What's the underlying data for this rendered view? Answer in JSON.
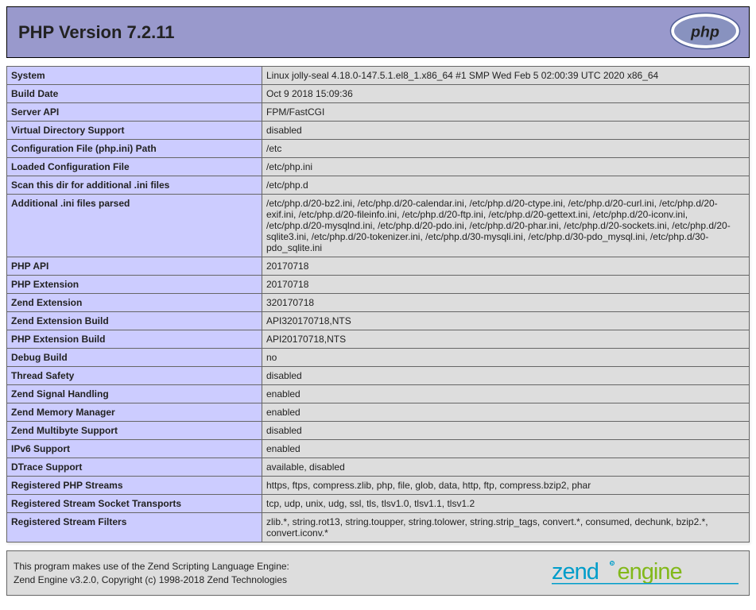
{
  "header": {
    "title": "PHP Version 7.2.11"
  },
  "info_rows": [
    {
      "key": "System",
      "value": "Linux jolly-seal 4.18.0-147.5.1.el8_1.x86_64 #1 SMP Wed Feb 5 02:00:39 UTC 2020 x86_64"
    },
    {
      "key": "Build Date",
      "value": "Oct 9 2018 15:09:36"
    },
    {
      "key": "Server API",
      "value": "FPM/FastCGI"
    },
    {
      "key": "Virtual Directory Support",
      "value": "disabled"
    },
    {
      "key": "Configuration File (php.ini) Path",
      "value": "/etc"
    },
    {
      "key": "Loaded Configuration File",
      "value": "/etc/php.ini"
    },
    {
      "key": "Scan this dir for additional .ini files",
      "value": "/etc/php.d"
    },
    {
      "key": "Additional .ini files parsed",
      "value": "/etc/php.d/20-bz2.ini, /etc/php.d/20-calendar.ini, /etc/php.d/20-ctype.ini, /etc/php.d/20-curl.ini, /etc/php.d/20-exif.ini, /etc/php.d/20-fileinfo.ini, /etc/php.d/20-ftp.ini, /etc/php.d/20-gettext.ini, /etc/php.d/20-iconv.ini, /etc/php.d/20-mysqlnd.ini, /etc/php.d/20-pdo.ini, /etc/php.d/20-phar.ini, /etc/php.d/20-sockets.ini, /etc/php.d/20-sqlite3.ini, /etc/php.d/20-tokenizer.ini, /etc/php.d/30-mysqli.ini, /etc/php.d/30-pdo_mysql.ini, /etc/php.d/30-pdo_sqlite.ini"
    },
    {
      "key": "PHP API",
      "value": "20170718"
    },
    {
      "key": "PHP Extension",
      "value": "20170718"
    },
    {
      "key": "Zend Extension",
      "value": "320170718"
    },
    {
      "key": "Zend Extension Build",
      "value": "API320170718,NTS"
    },
    {
      "key": "PHP Extension Build",
      "value": "API20170718,NTS"
    },
    {
      "key": "Debug Build",
      "value": "no"
    },
    {
      "key": "Thread Safety",
      "value": "disabled"
    },
    {
      "key": "Zend Signal Handling",
      "value": "enabled"
    },
    {
      "key": "Zend Memory Manager",
      "value": "enabled"
    },
    {
      "key": "Zend Multibyte Support",
      "value": "disabled"
    },
    {
      "key": "IPv6 Support",
      "value": "enabled"
    },
    {
      "key": "DTrace Support",
      "value": "available, disabled"
    },
    {
      "key": "Registered PHP Streams",
      "value": "https, ftps, compress.zlib, php, file, glob, data, http, ftp, compress.bzip2, phar"
    },
    {
      "key": "Registered Stream Socket Transports",
      "value": "tcp, udp, unix, udg, ssl, tls, tlsv1.0, tlsv1.1, tlsv1.2"
    },
    {
      "key": "Registered Stream Filters",
      "value": "zlib.*, string.rot13, string.toupper, string.tolower, string.strip_tags, convert.*, consumed, dechunk, bzip2.*, convert.iconv.*"
    }
  ],
  "footer": {
    "line1": "This program makes use of the Zend Scripting Language Engine:",
    "line2": "Zend Engine v3.2.0, Copyright (c) 1998-2018 Zend Technologies"
  },
  "colors": {
    "header_bg": "#9999cc",
    "key_bg": "#ccccff",
    "val_bg": "#dddddd",
    "border": "#666666",
    "zend_blue": "#009dca",
    "zend_green": "#82b81a",
    "php_dark": "#4F5D95",
    "php_text": "#222222"
  }
}
